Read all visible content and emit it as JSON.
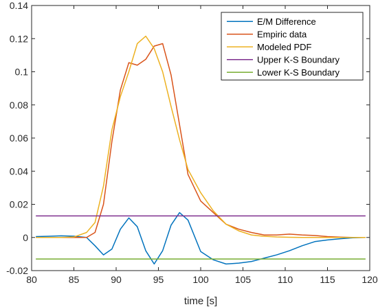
{
  "chart_data": {
    "type": "line",
    "title": "",
    "xlabel": "time [s]",
    "ylabel": "",
    "xlim": [
      80,
      120
    ],
    "ylim": [
      -0.02,
      0.14
    ],
    "xticks": [
      80,
      85,
      90,
      95,
      100,
      105,
      110,
      115,
      120
    ],
    "xtick_labels": [
      "80",
      "85",
      "90",
      "95",
      "100",
      "105",
      "110",
      "115",
      "120"
    ],
    "yticks": [
      -0.02,
      0,
      0.02,
      0.04,
      0.06,
      0.08,
      0.1,
      0.12,
      0.14
    ],
    "ytick_labels": [
      "-0.02",
      "0",
      "0.02",
      "0.04",
      "0.06",
      "0.08",
      "0.1",
      "0.12",
      "0.14"
    ],
    "grid": false,
    "legend_position": "top-right",
    "series": [
      {
        "name": "E/M Difference",
        "color": "#0072BD",
        "x": [
          80.5,
          82,
          83.5,
          85,
          86.5,
          87.5,
          88.5,
          89.5,
          90.5,
          91.5,
          92.5,
          93.5,
          94.5,
          95.5,
          96.5,
          97.5,
          98.5,
          100,
          101.5,
          103,
          104.5,
          106,
          107.5,
          109,
          110.5,
          112,
          113.5,
          115,
          116.5,
          118,
          119.5
        ],
        "y": [
          0.0005,
          0.0007,
          0.001,
          0.0008,
          0.0,
          -0.005,
          -0.0105,
          -0.007,
          0.005,
          0.0118,
          0.0065,
          -0.008,
          -0.016,
          -0.008,
          0.0075,
          0.015,
          0.0105,
          -0.0085,
          -0.0135,
          -0.016,
          -0.0155,
          -0.0145,
          -0.0125,
          -0.0105,
          -0.008,
          -0.005,
          -0.0025,
          -0.0015,
          -0.0008,
          -0.0002,
          0.0
        ]
      },
      {
        "name": "Empiric data",
        "color": "#D95319",
        "x": [
          80.5,
          82,
          83.5,
          85,
          86.5,
          87.5,
          88.5,
          89.5,
          90.5,
          91.5,
          92.5,
          93.5,
          94.5,
          95.5,
          96.5,
          97.5,
          98.5,
          100,
          101.5,
          103,
          104.5,
          106,
          107.5,
          109,
          110.5,
          112,
          113.5,
          115,
          116.5,
          118,
          119.5
        ],
        "y": [
          0.0,
          0.0,
          0.0,
          0.0,
          0.0,
          0.003,
          0.02,
          0.058,
          0.089,
          0.1055,
          0.104,
          0.1075,
          0.1155,
          0.117,
          0.098,
          0.068,
          0.038,
          0.022,
          0.015,
          0.008,
          0.005,
          0.003,
          0.0015,
          0.0015,
          0.002,
          0.0015,
          0.0012,
          0.0005,
          0.0002,
          0.0,
          0.0
        ]
      },
      {
        "name": "Modeled PDF",
        "color": "#EDB120",
        "x": [
          80.5,
          82,
          83.5,
          85,
          86.5,
          87.5,
          88.5,
          89.5,
          90.5,
          91.5,
          92.5,
          93.5,
          94.5,
          95.5,
          96.5,
          97.5,
          98.5,
          100,
          101.5,
          103,
          104.5,
          106,
          107.5,
          109,
          110.5,
          112,
          113.5,
          115,
          116.5,
          118,
          119.5
        ],
        "y": [
          0.0,
          0.0,
          0.0,
          0.0003,
          0.003,
          0.009,
          0.031,
          0.065,
          0.085,
          0.1,
          0.117,
          0.1215,
          0.114,
          0.1,
          0.079,
          0.059,
          0.041,
          0.027,
          0.016,
          0.008,
          0.004,
          0.0015,
          0.0007,
          0.0003,
          0.0001,
          0.0,
          0.0,
          0.0,
          0.0,
          0.0,
          0.0
        ]
      },
      {
        "name": "Upper K-S Boundary",
        "color": "#7E2F8E",
        "x": [
          80.5,
          119.5
        ],
        "y": [
          0.013,
          0.013
        ]
      },
      {
        "name": "Lower K-S Boundary",
        "color": "#77AC30",
        "x": [
          80.5,
          119.5
        ],
        "y": [
          -0.013,
          -0.013
        ]
      }
    ]
  }
}
